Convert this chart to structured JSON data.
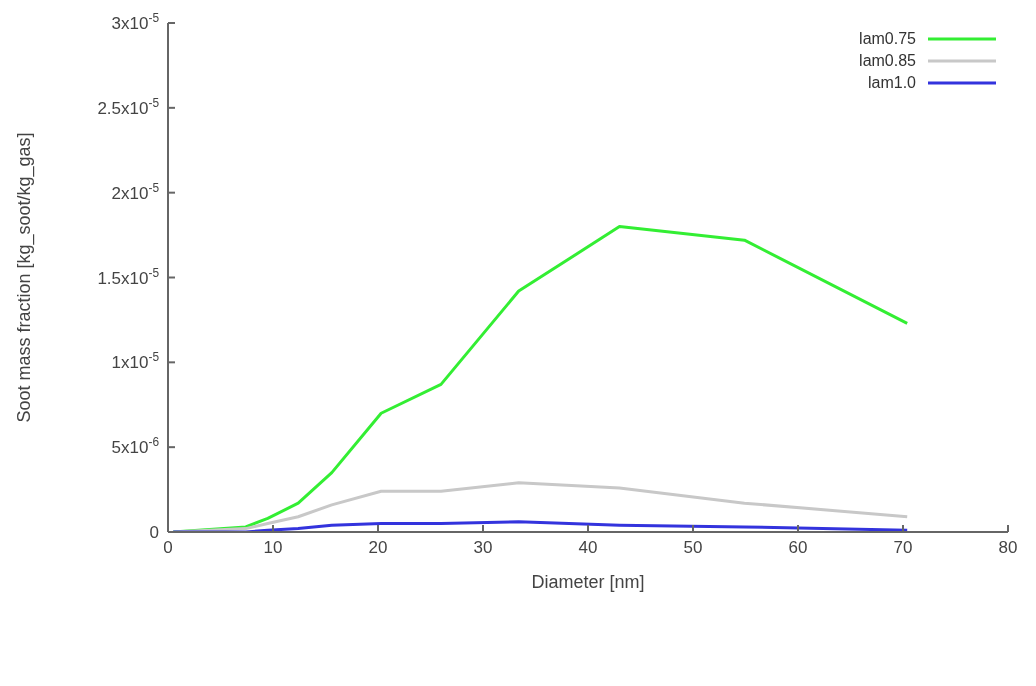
{
  "chart_data": {
    "type": "line",
    "xlabel": "Diameter [nm]",
    "ylabel": "Soot mass fraction [kg_soot/kg_gas]",
    "x": [
      0.5,
      7.4,
      9.5,
      12.4,
      15.6,
      20.3,
      26.0,
      33.4,
      43.0,
      54.9,
      70.4
    ],
    "series": [
      {
        "name": "lam0.75",
        "color": "#33ee33",
        "values": [
          0,
          3e-07,
          8e-07,
          1.7e-06,
          3.5e-06,
          7e-06,
          8.7e-06,
          1.42e-05,
          1.8e-05,
          1.72e-05,
          1.23e-05
        ]
      },
      {
        "name": "lam0.85",
        "color": "#c8c8c8",
        "values": [
          0,
          2e-07,
          5e-07,
          9e-07,
          1.6e-06,
          2.4e-06,
          2.4e-06,
          2.9e-06,
          2.6e-06,
          1.7e-06,
          9e-07
        ]
      },
      {
        "name": "lam1.0",
        "color": "#3333dd",
        "values": [
          0,
          0,
          1e-07,
          2e-07,
          4e-07,
          5e-07,
          5e-07,
          6e-07,
          4e-07,
          3e-07,
          1e-07
        ]
      }
    ],
    "xlim": [
      0,
      80
    ],
    "xticks": [
      0,
      10,
      20,
      30,
      40,
      50,
      60,
      70,
      80
    ],
    "ylim": [
      0,
      3e-05
    ],
    "yticks": [
      0,
      {
        "value": 5e-06,
        "label": "5x10$^{-6}$"
      },
      {
        "value": 1e-05,
        "label": "1x10$^{-5}$"
      },
      {
        "value": 1.5e-05,
        "label": "1.5x10$^{-5}$"
      },
      {
        "value": 2e-05,
        "label": "2x10$^{-5}$"
      },
      {
        "value": 2.5e-05,
        "label": "2.5x10$^{-5}$"
      },
      {
        "value": 3e-05,
        "label": "3x10$^{-5}$"
      }
    ],
    "grid": false,
    "legend": "top right",
    "marker": "none",
    "line_style": "solid"
  }
}
